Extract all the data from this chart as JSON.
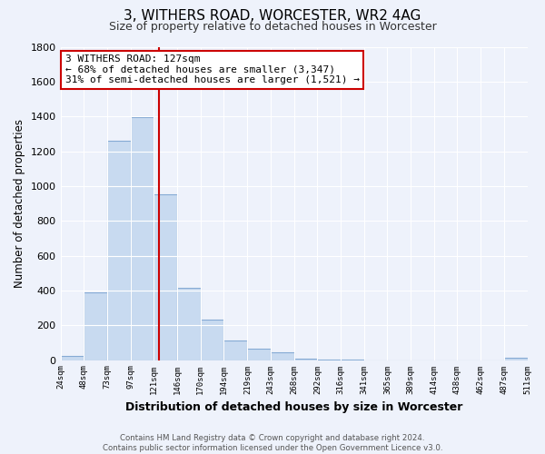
{
  "title": "3, WITHERS ROAD, WORCESTER, WR2 4AG",
  "subtitle": "Size of property relative to detached houses in Worcester",
  "xlabel": "Distribution of detached houses by size in Worcester",
  "ylabel": "Number of detached properties",
  "bar_color": "#c8daf0",
  "bar_edgecolor": "#85aad4",
  "background_color": "#eef2fb",
  "grid_color": "#ffffff",
  "bins": [
    24,
    48,
    73,
    97,
    121,
    146,
    170,
    194,
    219,
    243,
    268,
    292,
    316,
    341,
    365,
    389,
    414,
    438,
    462,
    487,
    511
  ],
  "counts": [
    25,
    390,
    1260,
    1395,
    950,
    415,
    235,
    110,
    65,
    45,
    10,
    5,
    2,
    0,
    0,
    0,
    0,
    0,
    0,
    15
  ],
  "vline_x": 127,
  "vline_color": "#cc0000",
  "annotation_line1": "3 WITHERS ROAD: 127sqm",
  "annotation_line2": "← 68% of detached houses are smaller (3,347)",
  "annotation_line3": "31% of semi-detached houses are larger (1,521) →",
  "annotation_box_color": "#ffffff",
  "annotation_box_edgecolor": "#cc0000",
  "ylim": [
    0,
    1800
  ],
  "yticks": [
    0,
    200,
    400,
    600,
    800,
    1000,
    1200,
    1400,
    1600,
    1800
  ],
  "tick_labels": [
    "24sqm",
    "48sqm",
    "73sqm",
    "97sqm",
    "121sqm",
    "146sqm",
    "170sqm",
    "194sqm",
    "219sqm",
    "243sqm",
    "268sqm",
    "292sqm",
    "316sqm",
    "341sqm",
    "365sqm",
    "389sqm",
    "414sqm",
    "438sqm",
    "462sqm",
    "487sqm",
    "511sqm"
  ],
  "footer_line1": "Contains HM Land Registry data © Crown copyright and database right 2024.",
  "footer_line2": "Contains public sector information licensed under the Open Government Licence v3.0."
}
